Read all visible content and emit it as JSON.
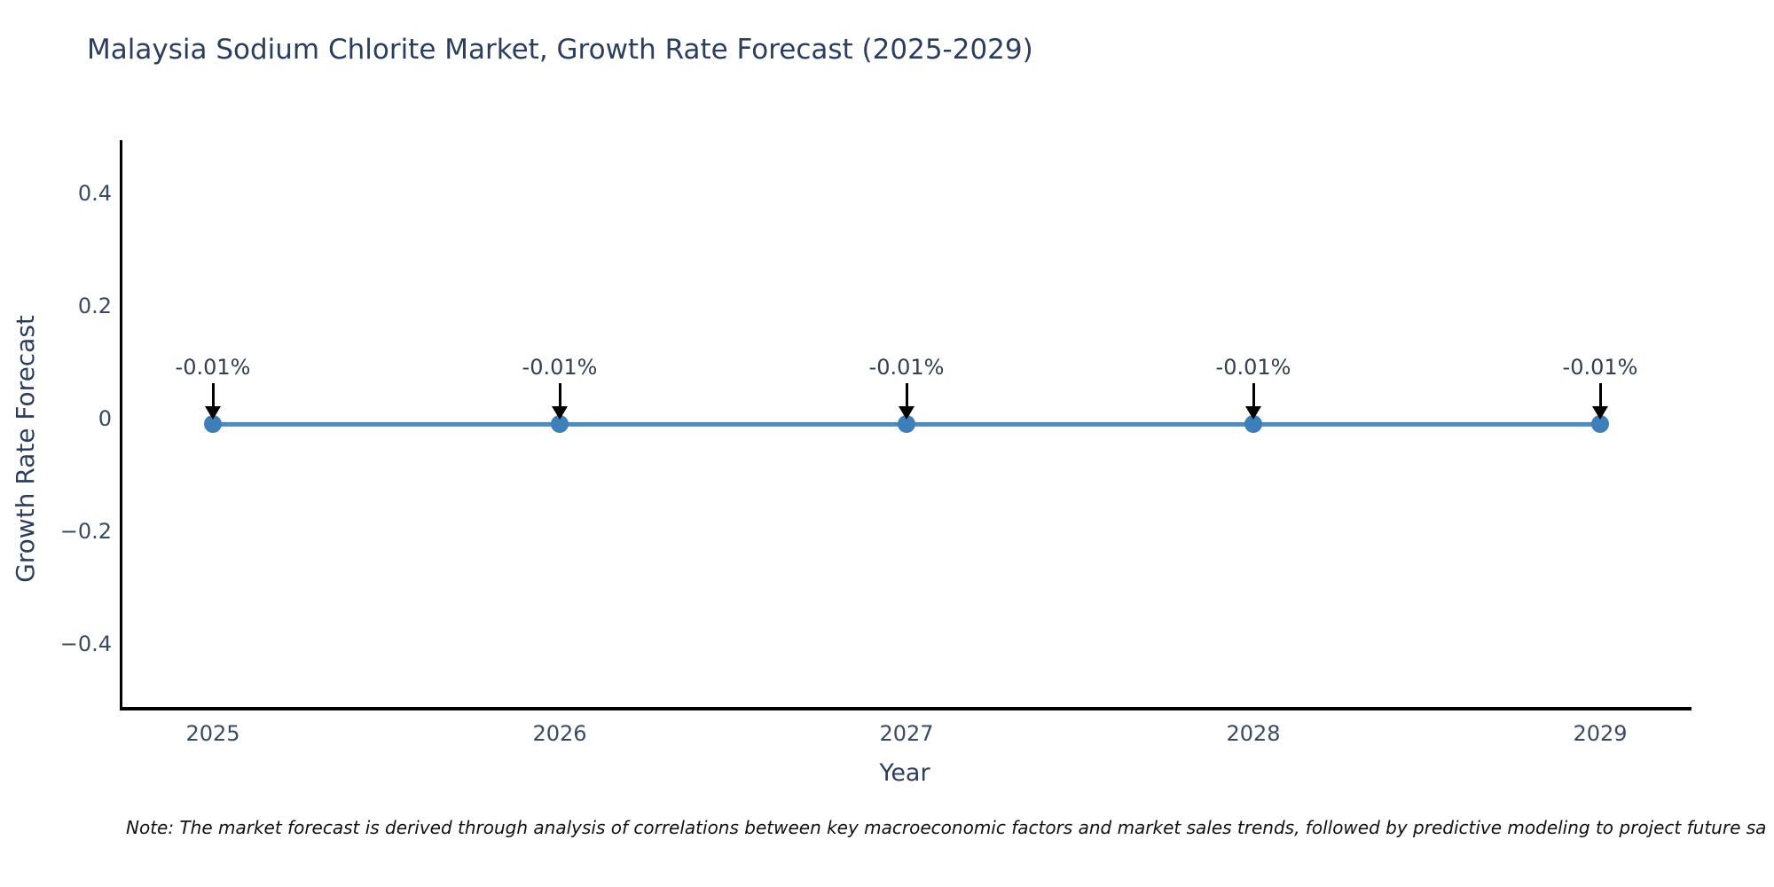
{
  "chart_data": {
    "type": "line",
    "title": "Malaysia Sodium Chlorite Market, Growth Rate Forecast (2025-2029)",
    "xlabel": "Year",
    "ylabel": "Growth Rate Forecast",
    "x": [
      "2025",
      "2026",
      "2027",
      "2028",
      "2029"
    ],
    "series": [
      {
        "name": "Growth Rate Forecast",
        "values": [
          -0.01,
          -0.01,
          -0.01,
          -0.01,
          -0.01
        ]
      }
    ],
    "point_labels": [
      "-0.01%",
      "-0.01%",
      "-0.01%",
      "-0.01%",
      "-0.01%"
    ],
    "y_ticks": [
      {
        "label": "0.4",
        "value": 0.4
      },
      {
        "label": "0.2",
        "value": 0.2
      },
      {
        "label": "0",
        "value": 0
      },
      {
        "label": "−0.2",
        "value": -0.2
      },
      {
        "label": "−0.4",
        "value": -0.4
      }
    ],
    "ylim": [
      -0.52,
      0.49
    ],
    "grid": false,
    "legend": false,
    "line_color": "#4f8abc",
    "marker_color": "#3e7fba",
    "annotation_arrow_color": "#000000",
    "axis_color": "#000000",
    "title_color": "#2c3e5d"
  },
  "footnote": "Note: The market forecast is derived through analysis of correlations between key macroeconomic factors and market sales trends, followed by predictive modeling to project future sa"
}
